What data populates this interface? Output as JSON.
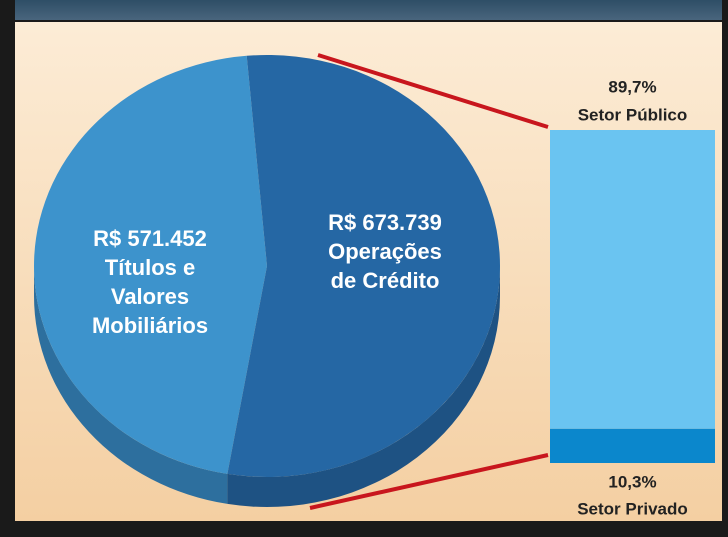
{
  "chart_data": [
    {
      "type": "pie",
      "categories": [
        "Títulos e Valores Mobiliários",
        "Operações de Crédito"
      ],
      "values": [
        571452,
        673739
      ],
      "value_labels": [
        "R$ 571.452",
        "R$ 673.739"
      ],
      "colors": [
        "#3d93cc",
        "#2567a4"
      ],
      "side_colors": [
        "#2d6f9e",
        "#1e5283"
      ]
    },
    {
      "type": "bar",
      "categories": [
        "Setor Público",
        "Setor Privado"
      ],
      "values": [
        89.7,
        10.3
      ],
      "value_labels": [
        "89,7%",
        "10,3%"
      ],
      "colors": [
        "#6ac4f1",
        "#0b87cc"
      ]
    }
  ]
}
